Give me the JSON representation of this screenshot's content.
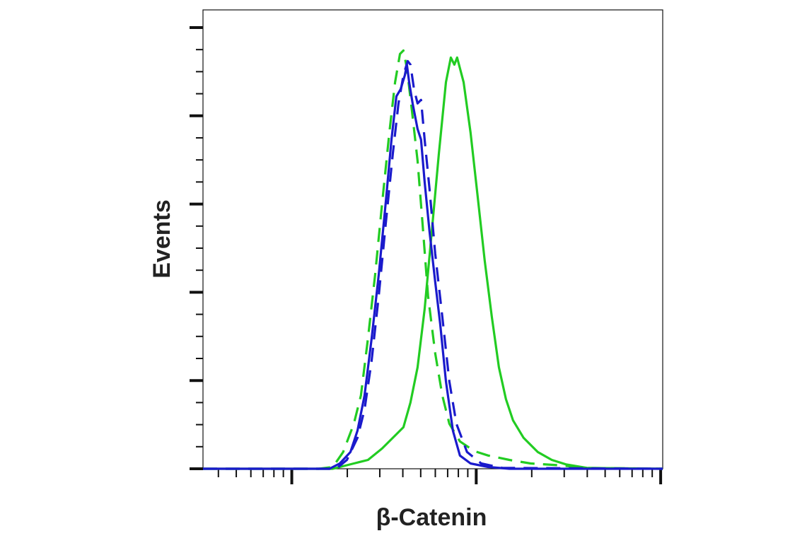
{
  "chart_data": {
    "type": "line",
    "title": "",
    "xlabel": "β-Catenin",
    "ylabel": "Events",
    "x_scale": "log",
    "xlim": [
      33,
      10260
    ],
    "ylim": [
      0,
      5.2
    ],
    "x_major_ticks": [
      100,
      1000,
      10000
    ],
    "y_major_ticks": [
      0,
      1,
      2,
      3,
      4,
      5
    ],
    "tick_labels_shown": false,
    "grid": false,
    "legend": "none",
    "series": [
      {
        "color": "#22cc22",
        "style": "solid",
        "x": [
          33,
          167,
          217,
          259,
          309,
          369,
          403,
          440,
          481,
          525,
          574,
          627,
          685,
          728,
          761,
          788,
          854,
          932,
          1018,
          1112,
          1215,
          1327,
          1449,
          1583,
          1806,
          2155,
          2570,
          3066,
          3996,
          10260
        ],
        "y": [
          0,
          0,
          0.06,
          0.1,
          0.23,
          0.39,
          0.47,
          0.75,
          1.15,
          1.81,
          2.69,
          3.57,
          4.38,
          4.66,
          4.58,
          4.66,
          4.38,
          3.81,
          3.09,
          2.36,
          1.72,
          1.15,
          0.79,
          0.55,
          0.35,
          0.19,
          0.1,
          0.05,
          0.01,
          0
        ]
      },
      {
        "color": "#22cc22",
        "style": "dashed",
        "x": [
          33,
          140,
          167,
          190,
          217,
          237,
          259,
          283,
          309,
          338,
          363,
          386,
          403,
          421,
          448,
          481,
          512,
          548,
          599,
          655,
          715,
          816,
          975,
          1162,
          1514,
          1974,
          2806,
          3996,
          10260
        ],
        "y": [
          0,
          0,
          0.02,
          0.19,
          0.51,
          0.83,
          1.48,
          2.2,
          3.01,
          3.81,
          4.38,
          4.7,
          4.74,
          4.54,
          4.06,
          3.49,
          2.77,
          1.96,
          1.31,
          0.83,
          0.51,
          0.31,
          0.2,
          0.15,
          0.1,
          0.06,
          0.04,
          0.01,
          0
        ]
      },
      {
        "color": "#1a1acc",
        "style": "solid",
        "x": [
          33,
          160,
          182,
          208,
          227,
          248,
          271,
          296,
          323,
          347,
          369,
          389,
          410,
          421,
          433,
          452,
          481,
          502,
          525,
          558,
          599,
          638,
          685,
          748,
          816,
          932,
          1162,
          1514,
          10260
        ],
        "y": [
          0,
          0,
          0.06,
          0.19,
          0.43,
          0.83,
          1.48,
          2.2,
          3.01,
          3.73,
          4.22,
          4.3,
          4.46,
          4.58,
          4.38,
          4.14,
          3.85,
          3.73,
          3.25,
          2.69,
          2.12,
          1.64,
          0.99,
          0.43,
          0.15,
          0.06,
          0.02,
          0,
          0
        ]
      },
      {
        "color": "#1a1acc",
        "style": "dashed",
        "x": [
          33,
          174,
          199,
          227,
          248,
          271,
          296,
          323,
          353,
          379,
          403,
          425,
          440,
          460,
          481,
          502,
          525,
          558,
          599,
          655,
          715,
          781,
          891,
          1064,
          1387,
          10260
        ],
        "y": [
          0,
          0,
          0.1,
          0.35,
          0.67,
          1.23,
          1.96,
          2.77,
          3.57,
          4.14,
          4.46,
          4.62,
          4.58,
          4.3,
          4.14,
          4.18,
          3.73,
          3.17,
          2.44,
          1.72,
          0.99,
          0.51,
          0.19,
          0.06,
          0.01,
          0
        ]
      }
    ]
  }
}
